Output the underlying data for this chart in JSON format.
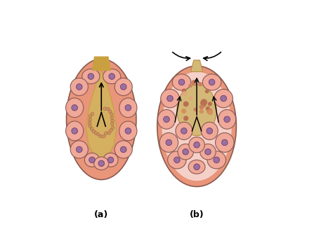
{
  "background_color": "#ffffff",
  "label_a": "(a)",
  "label_b": "(b)",
  "fig_width": 4.74,
  "fig_height": 3.34,
  "salmon_color": "#E8957A",
  "salmon_dark": "#D4806A",
  "salmon_light": "#F0A898",
  "gold_color": "#C8A040",
  "gold_light": "#D4B060",
  "purple_color": "#9B6FA0",
  "pink_bg": "#F5D0C8",
  "outline_color": "#8B5A50"
}
